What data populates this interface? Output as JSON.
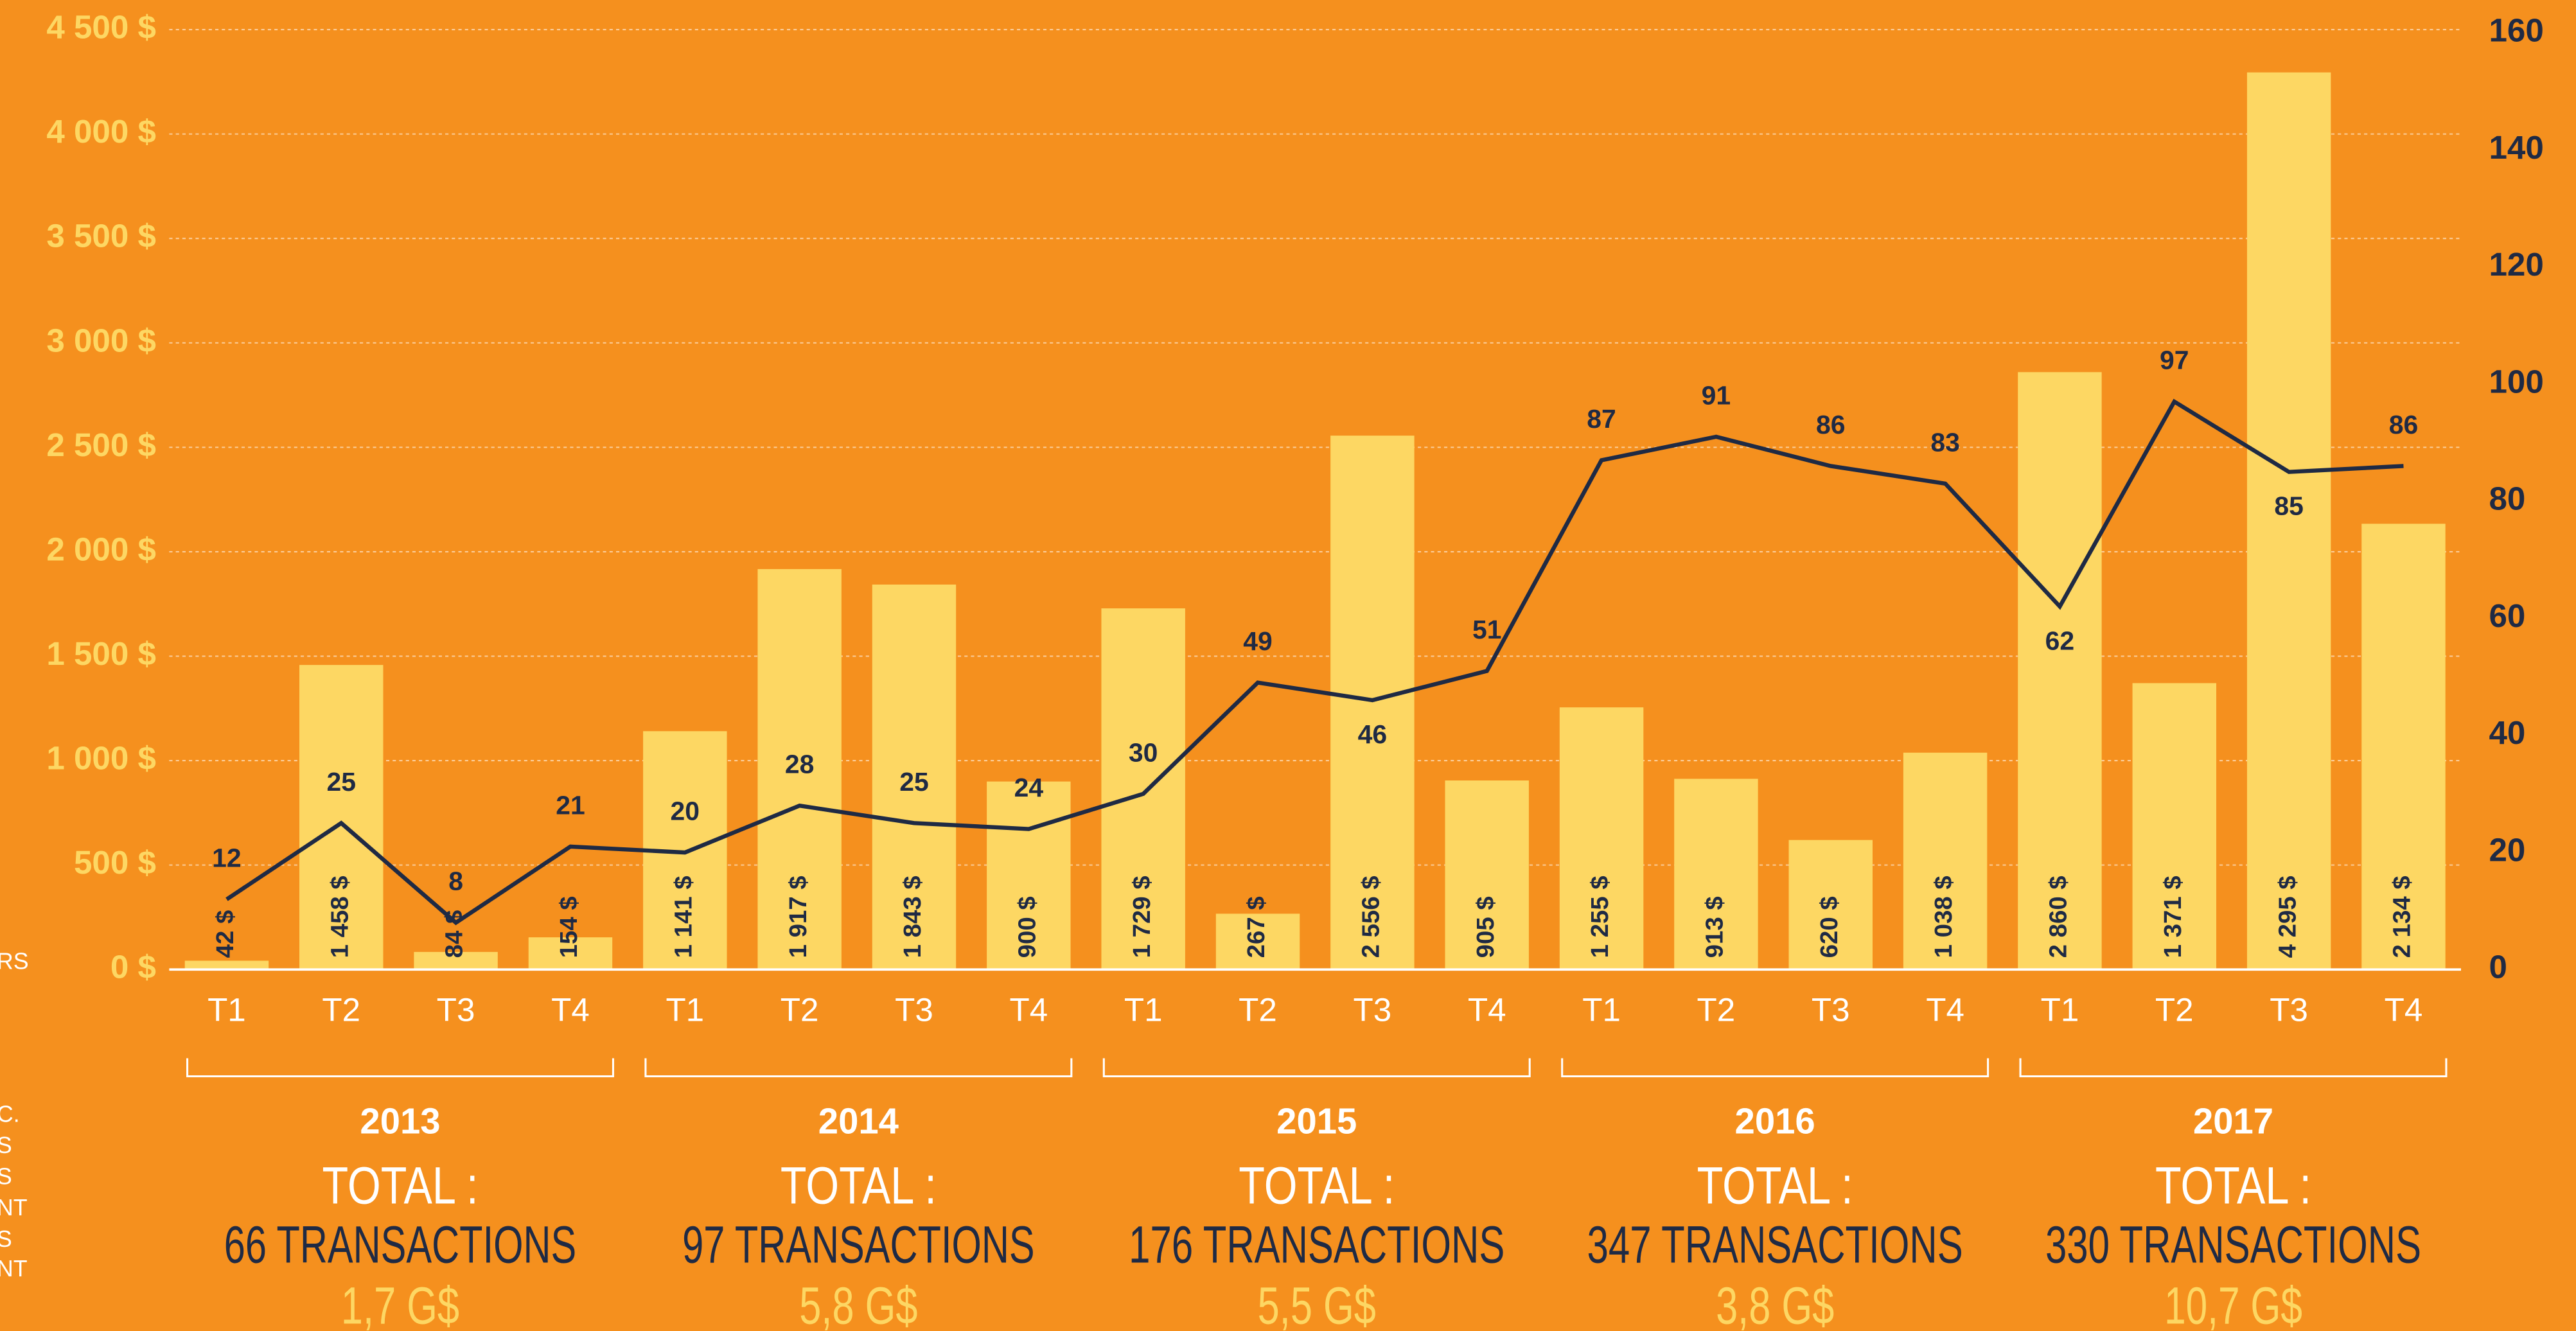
{
  "chart_data": {
    "type": "bar_line",
    "categories": [
      "T1",
      "T2",
      "T3",
      "T4",
      "T1",
      "T2",
      "T3",
      "T4",
      "T1",
      "T2",
      "T3",
      "T4",
      "T1",
      "T2",
      "T3",
      "T4",
      "T1",
      "T2",
      "T3",
      "T4"
    ],
    "bars": {
      "color": "#fdd763",
      "values": [
        42,
        1458,
        84,
        154,
        1141,
        1917,
        1843,
        900,
        1729,
        267,
        2556,
        905,
        1255,
        913,
        620,
        1038,
        2860,
        1371,
        4295,
        2134
      ],
      "value_labels": [
        "42 $",
        "1 458 $",
        "84 $",
        "154 $",
        "1 141 $",
        "1 917 $",
        "1 843 $",
        "900 $",
        "1 729 $",
        "267 $",
        "2 556 $",
        "905 $",
        "1 255 $",
        "913 $",
        "620 $",
        "1 038 $",
        "2 860 $",
        "1 371 $",
        "4 295 $",
        "2 134 $"
      ]
    },
    "line": {
      "color": "#1f2a44",
      "axis": "y2",
      "values": [
        12,
        25,
        8,
        21,
        20,
        28,
        25,
        24,
        30,
        49,
        46,
        51,
        87,
        91,
        86,
        83,
        62,
        97,
        85,
        86
      ]
    },
    "ylim": [
      0,
      4500
    ],
    "yticks": [
      {
        "value": 0,
        "label": "0 $"
      },
      {
        "value": 500,
        "label": "500 $"
      },
      {
        "value": 1000,
        "label": "1 000 $"
      },
      {
        "value": 1500,
        "label": "1 500 $"
      },
      {
        "value": 2000,
        "label": "2 000 $"
      },
      {
        "value": 2500,
        "label": "2 500 $"
      },
      {
        "value": 3000,
        "label": "3 000 $"
      },
      {
        "value": 3500,
        "label": "3 500 $"
      },
      {
        "value": 4000,
        "label": "4 000 $"
      },
      {
        "value": 4500,
        "label": "4 500 $"
      }
    ],
    "y2lim": [
      0,
      160
    ],
    "y2ticks": [
      0,
      20,
      40,
      60,
      80,
      100,
      120,
      140,
      160
    ],
    "grid": true,
    "groups": [
      {
        "label": "2013",
        "total": "TOTAL :",
        "transactions": "66 TRANSACTIONS",
        "amount": "1,7 G$"
      },
      {
        "label": "2014",
        "total": "TOTAL :",
        "transactions": "97 TRANSACTIONS",
        "amount": "5,8 G$"
      },
      {
        "label": "2015",
        "total": "TOTAL :",
        "transactions": "176 TRANSACTIONS",
        "amount": "5,5 G$"
      },
      {
        "label": "2016",
        "total": "TOTAL :",
        "transactions": "347 TRANSACTIONS",
        "amount": "3,8 G$"
      },
      {
        "label": "2017",
        "total": "TOTAL :",
        "transactions": "330 TRANSACTIONS",
        "amount": "10,7 G$"
      }
    ],
    "left_fragments": [
      "RS",
      "C.",
      "S",
      "S",
      "NT",
      "S",
      "NT"
    ]
  }
}
